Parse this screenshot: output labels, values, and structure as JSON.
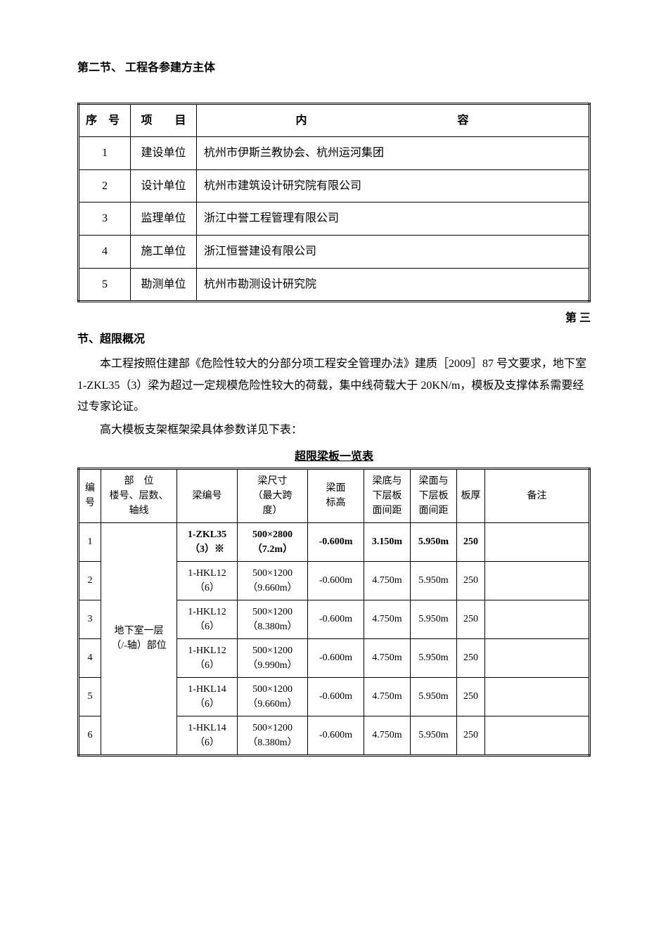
{
  "section2_title": "第二节、 工程各参建方主体",
  "table1": {
    "headers": [
      "序 号",
      "项　　目",
      "内　　　　容"
    ],
    "rows": [
      [
        "1",
        "建设单位",
        "杭州市伊斯兰教协会、杭州运河集团"
      ],
      [
        "2",
        "设计单位",
        "杭州市建筑设计研究院有限公司"
      ],
      [
        "3",
        "监理单位",
        "浙江中誉工程管理有限公司"
      ],
      [
        "4",
        "施工单位",
        "浙江恒誉建设有限公司"
      ],
      [
        "5",
        "勘测单位",
        "杭州市勘测设计研究院"
      ]
    ]
  },
  "trail_text": "第 三",
  "section3_title": "节、超限概况",
  "para1": "本工程按照住建部《危险性较大的分部分项工程安全管理办法》建质［2009］87 号文要求，地下室 1-ZKL35（3）梁为超过一定规模危险性较大的荷载，集中线荷载大于 20KN/m，模板及支撑体系需要经过专家论证。",
  "para2": "高大模板支架框架梁具体参数详见下表：",
  "table2": {
    "caption": "超限梁板一览表",
    "headers": [
      "编号",
      "部　位\n楼号、层数、\n轴线",
      "梁编号",
      "梁尺寸\n（最大跨\n度）",
      "梁面\n标高",
      "梁底与\n下层板\n面间距",
      "梁面与\n下层板\n面间距",
      "板厚",
      "备注"
    ],
    "location_cell": "地下室一层\n（/-轴）部位",
    "rows": [
      {
        "idx": "1",
        "beam": "1-ZKL35（3）※",
        "size": "500×2800\n（7.2m）",
        "lev": "-0.600m",
        "g1": "3.150m",
        "g2": "5.950m",
        "thk": "250",
        "rem": "",
        "bold": true
      },
      {
        "idx": "2",
        "beam": "1-HKL12（6）",
        "size": "500×1200\n（9.660m）",
        "lev": "-0.600m",
        "g1": "4.750m",
        "g2": "5.950m",
        "thk": "250",
        "rem": "",
        "bold": false
      },
      {
        "idx": "3",
        "beam": "1-HKL12（6）",
        "size": "500×1200\n（8.380m）",
        "lev": "-0.600m",
        "g1": "4.750m",
        "g2": "5.950m",
        "thk": "250",
        "rem": "",
        "bold": false
      },
      {
        "idx": "4",
        "beam": "1-HKL12（6）",
        "size": "500×1200\n（9.990m）",
        "lev": "-0.600m",
        "g1": "4.750m",
        "g2": "5.950m",
        "thk": "250",
        "rem": "",
        "bold": false
      },
      {
        "idx": "5",
        "beam": "1-HKL14（6）",
        "size": "500×1200\n（9.660m）",
        "lev": "-0.600m",
        "g1": "4.750m",
        "g2": "5.950m",
        "thk": "250",
        "rem": "",
        "bold": false
      },
      {
        "idx": "6",
        "beam": "1-HKL14（6）",
        "size": "500×1200\n（8.380m）",
        "lev": "-0.600m",
        "g1": "4.750m",
        "g2": "5.950m",
        "thk": "250",
        "rem": "",
        "bold": false
      }
    ]
  }
}
